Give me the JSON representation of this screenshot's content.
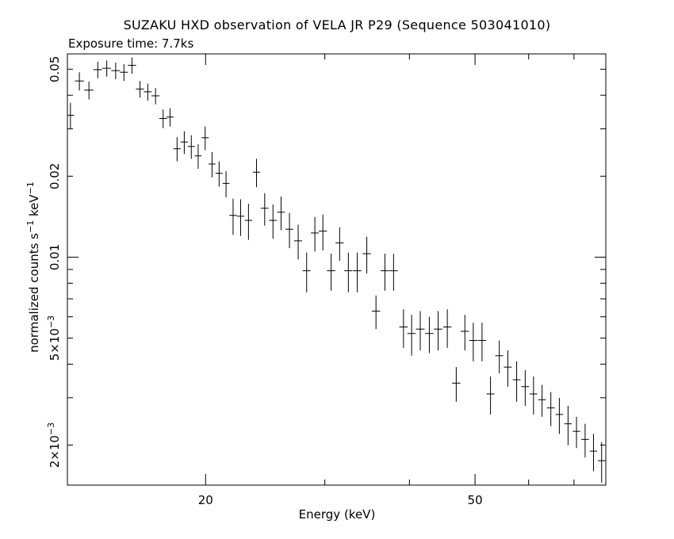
{
  "chart_data": {
    "type": "scatter",
    "title": "SUZAKU HXD observation of VELA JR P29 (Sequence 503041010)",
    "subtitle": "Exposure time: 7.7ks",
    "xlabel": "Energy (keV)",
    "ylabel": {
      "prefix": "normalized counts s",
      "exp1": "−1",
      "mid": " keV",
      "exp2": "−1"
    },
    "x_scale": "log",
    "y_scale": "log",
    "xlim": [
      12.5,
      78
    ],
    "ylim": [
      0.00142,
      0.057
    ],
    "x_ticks": [
      {
        "value": 20,
        "label": "20"
      },
      {
        "value": 50,
        "label": "50"
      }
    ],
    "y_ticks": [
      {
        "value": 0.05,
        "label": "0.05"
      },
      {
        "value": 0.02,
        "label": "0.02"
      },
      {
        "value": 0.01,
        "label": "0.01"
      },
      {
        "value": 0.005,
        "label": "5×10",
        "exp": "−3"
      },
      {
        "value": 0.002,
        "label": "2×10",
        "exp": "−3"
      }
    ],
    "points": [
      [
        12.63,
        0.0337,
        0.16,
        0.0038
      ],
      [
        13.02,
        0.0452,
        0.2,
        0.0035
      ],
      [
        13.45,
        0.0418,
        0.21,
        0.0032
      ],
      [
        13.86,
        0.0498,
        0.2,
        0.0035
      ],
      [
        14.29,
        0.0504,
        0.21,
        0.0035
      ],
      [
        14.73,
        0.0494,
        0.22,
        0.0035
      ],
      [
        15.15,
        0.0487,
        0.21,
        0.0035
      ],
      [
        15.57,
        0.0517,
        0.22,
        0.0036
      ],
      [
        16.0,
        0.0422,
        0.22,
        0.003
      ],
      [
        16.43,
        0.0412,
        0.22,
        0.003
      ],
      [
        16.87,
        0.0398,
        0.23,
        0.0028
      ],
      [
        17.31,
        0.0328,
        0.23,
        0.0026
      ],
      [
        17.72,
        0.0332,
        0.22,
        0.0026
      ],
      [
        18.15,
        0.0253,
        0.22,
        0.0026
      ],
      [
        18.6,
        0.0268,
        0.23,
        0.0026
      ],
      [
        19.05,
        0.0258,
        0.23,
        0.0026
      ],
      [
        19.5,
        0.0238,
        0.23,
        0.0025
      ],
      [
        19.97,
        0.0278,
        0.24,
        0.0028
      ],
      [
        20.44,
        0.0222,
        0.24,
        0.0024
      ],
      [
        20.94,
        0.0205,
        0.25,
        0.0022
      ],
      [
        21.44,
        0.0188,
        0.25,
        0.0021
      ],
      [
        21.96,
        0.0143,
        0.28,
        0.0022
      ],
      [
        22.53,
        0.0142,
        0.28,
        0.0022
      ],
      [
        23.14,
        0.0137,
        0.3,
        0.0021
      ],
      [
        23.78,
        0.0207,
        0.3,
        0.0025
      ],
      [
        24.45,
        0.0152,
        0.32,
        0.0021
      ],
      [
        25.15,
        0.0137,
        0.33,
        0.002
      ],
      [
        25.85,
        0.0147,
        0.34,
        0.0021
      ],
      [
        26.6,
        0.0127,
        0.36,
        0.0019
      ],
      [
        27.4,
        0.0115,
        0.37,
        0.0017
      ],
      [
        28.2,
        0.0089,
        0.38,
        0.0015
      ],
      [
        29.0,
        0.0123,
        0.39,
        0.0018
      ],
      [
        29.8,
        0.0125,
        0.41,
        0.0019
      ],
      [
        30.65,
        0.0089,
        0.43,
        0.0014
      ],
      [
        31.55,
        0.0113,
        0.44,
        0.0016
      ],
      [
        32.5,
        0.0089,
        0.45,
        0.0015
      ],
      [
        33.5,
        0.0089,
        0.47,
        0.0015
      ],
      [
        34.6,
        0.0103,
        0.49,
        0.0016
      ],
      [
        35.7,
        0.0063,
        0.5,
        0.0009
      ],
      [
        36.8,
        0.0089,
        0.52,
        0.0014
      ],
      [
        37.9,
        0.0089,
        0.54,
        0.0014
      ],
      [
        39.2,
        0.0055,
        0.56,
        0.0009
      ],
      [
        40.3,
        0.0052,
        0.58,
        0.0009
      ],
      [
        41.5,
        0.0054,
        0.6,
        0.0009
      ],
      [
        42.8,
        0.0052,
        0.61,
        0.0008
      ],
      [
        44.1,
        0.0054,
        0.63,
        0.0009
      ],
      [
        45.5,
        0.0055,
        0.64,
        0.0009
      ],
      [
        46.9,
        0.0034,
        0.66,
        0.0005
      ],
      [
        48.3,
        0.0053,
        0.67,
        0.0008
      ],
      [
        49.7,
        0.0049,
        0.69,
        0.0008
      ],
      [
        51.2,
        0.0049,
        0.7,
        0.0008
      ],
      [
        52.7,
        0.0031,
        0.72,
        0.0005
      ],
      [
        54.3,
        0.0043,
        0.73,
        0.0006
      ],
      [
        55.9,
        0.0039,
        0.75,
        0.0006
      ],
      [
        57.6,
        0.0035,
        0.76,
        0.0006
      ],
      [
        59.3,
        0.0033,
        0.78,
        0.0005
      ],
      [
        61.0,
        0.0031,
        0.8,
        0.0005
      ],
      [
        62.8,
        0.00295,
        0.82,
        0.0004
      ],
      [
        64.7,
        0.00275,
        0.84,
        0.0004
      ],
      [
        66.6,
        0.0026,
        0.86,
        0.0004
      ],
      [
        68.6,
        0.0024,
        0.88,
        0.0004
      ],
      [
        70.6,
        0.00225,
        0.9,
        0.0003
      ],
      [
        72.7,
        0.0021,
        0.93,
        0.0003
      ],
      [
        74.8,
        0.0019,
        0.95,
        0.0003
      ],
      [
        76.9,
        0.00175,
        0.98,
        0.0003
      ]
    ]
  }
}
